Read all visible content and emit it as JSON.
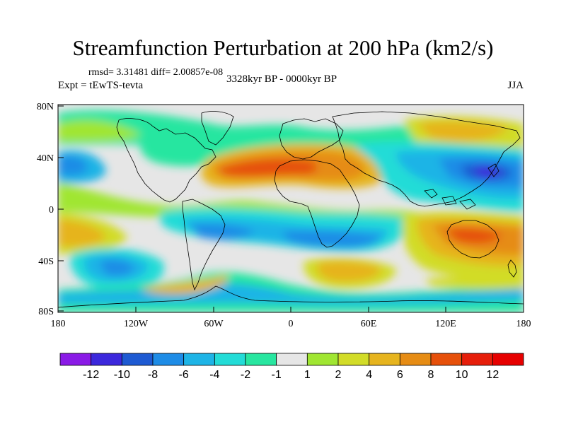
{
  "title": "Streamfunction Perturbation at 200 hPa (km2/s)",
  "stats": "rmsd= 3.31481 diff= 2.00857e-08",
  "left_label": "Expt = tEwTS-tevta",
  "center_label": "3328kyr BP - 0000kyr BP",
  "right_label": "JJA",
  "lat_ticks": [
    "80N",
    "40N",
    "0",
    "40S",
    "80S"
  ],
  "lon_ticks": [
    "180",
    "120W",
    "60W",
    "0",
    "60E",
    "120E",
    "180"
  ],
  "colorbar": {
    "labels": [
      "-12",
      "-10",
      "-8",
      "-6",
      "-4",
      "-2",
      "-1",
      "1",
      "2",
      "4",
      "6",
      "8",
      "10",
      "12"
    ],
    "colors": [
      "#8a1ae6",
      "#3c28dc",
      "#1e5ad2",
      "#1e8ce6",
      "#1eb4e6",
      "#23dcd7",
      "#28e6a0",
      "#e6e6e6",
      "#a0e632",
      "#d2dc28",
      "#e6b41e",
      "#e68c14",
      "#e6500a",
      "#e61e0a",
      "#e60000"
    ]
  },
  "colors": {
    "background": "#e6e6e6",
    "coastline": "#000000"
  }
}
